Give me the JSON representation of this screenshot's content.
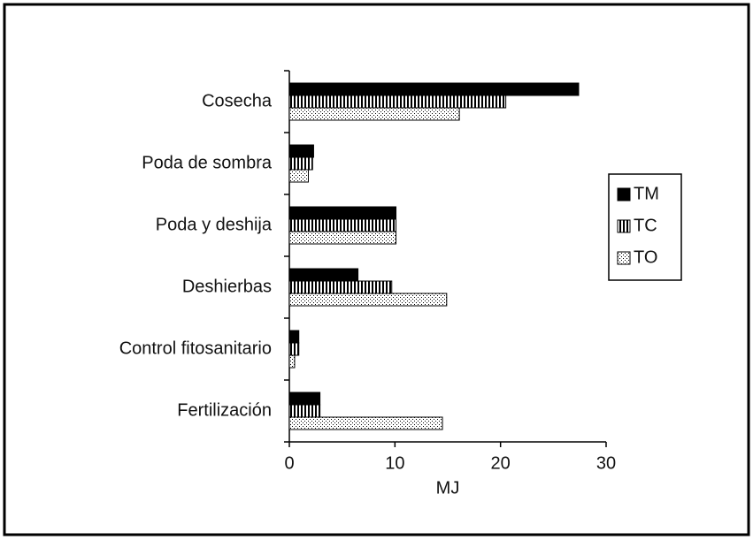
{
  "chart_data": {
    "type": "barh",
    "categories": [
      "Cosecha",
      "Poda de sombra",
      "Poda y deshija",
      "Deshierbas",
      "Control fitosanitario",
      "Fertilización"
    ],
    "series": [
      {
        "name": "TM",
        "color": "#000000",
        "pattern": "solid",
        "values": [
          27.4,
          2.3,
          10.1,
          6.5,
          0.9,
          2.9
        ]
      },
      {
        "name": "TC",
        "color": "#000000",
        "pattern": "vertical-stripes",
        "values": [
          20.5,
          2.2,
          10.1,
          9.7,
          0.9,
          2.9
        ]
      },
      {
        "name": "TO",
        "color": "#000000",
        "pattern": "dots",
        "values": [
          16.1,
          1.8,
          10.1,
          14.9,
          0.5,
          14.5
        ]
      }
    ],
    "x_label": "MJ",
    "xlim": [
      0,
      30
    ],
    "xticks": [
      0,
      10,
      20,
      30
    ],
    "grid": false,
    "legend": "right"
  }
}
